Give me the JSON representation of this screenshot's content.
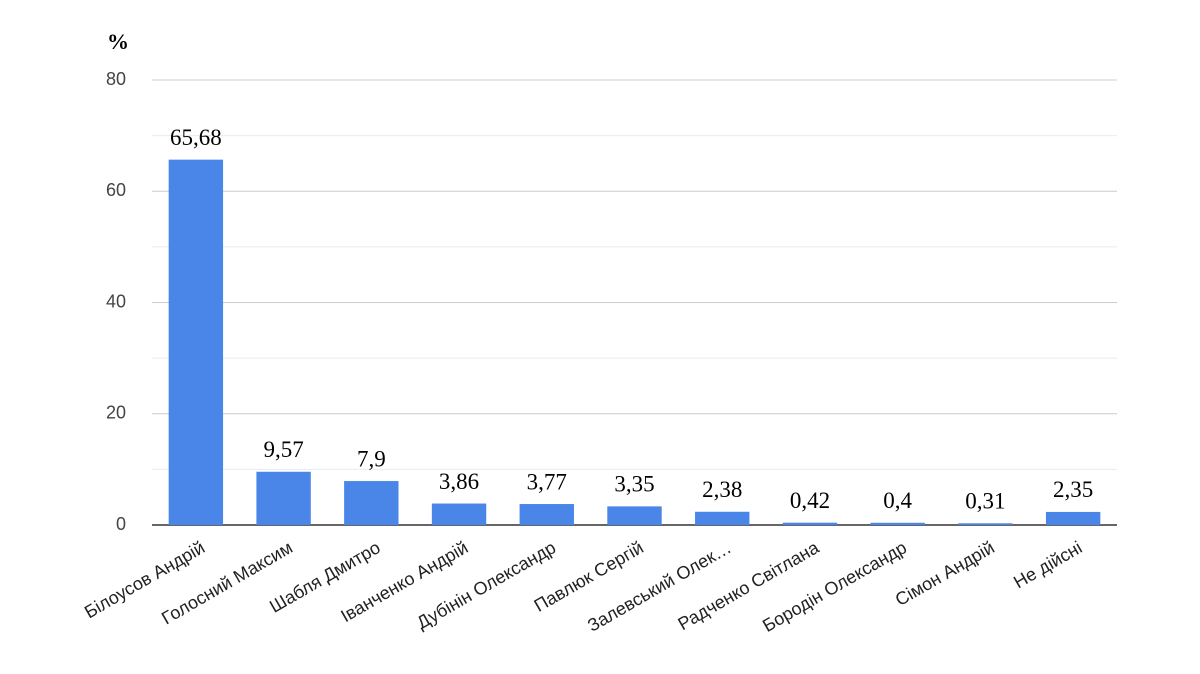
{
  "chart_data": {
    "type": "bar",
    "y_axis_label": "%",
    "categories": [
      "Білоусов Андрій",
      "Голосний Максим",
      "Шабля Дмитро",
      "Іванченко Андрій",
      "Дубінін Олександр",
      "Павлюк Сергій",
      "Залевський Олек…",
      "Радченко Світлана",
      "Бородін Олександр",
      "Сімон Андрій",
      "Не дійсні"
    ],
    "values": [
      65.68,
      9.57,
      7.9,
      3.86,
      3.77,
      3.35,
      2.38,
      0.42,
      0.4,
      0.31,
      2.35
    ],
    "value_labels": [
      "65,68",
      "9,57",
      "7,9",
      "3,86",
      "3,77",
      "3,35",
      "2,38",
      "0,42",
      "0,4",
      "0,31",
      "2,35"
    ],
    "color": "#4a86e8",
    "ylim": [
      0,
      80
    ],
    "yticks": [
      0,
      20,
      40,
      60,
      80
    ],
    "grid": true,
    "minor_grid": true
  }
}
